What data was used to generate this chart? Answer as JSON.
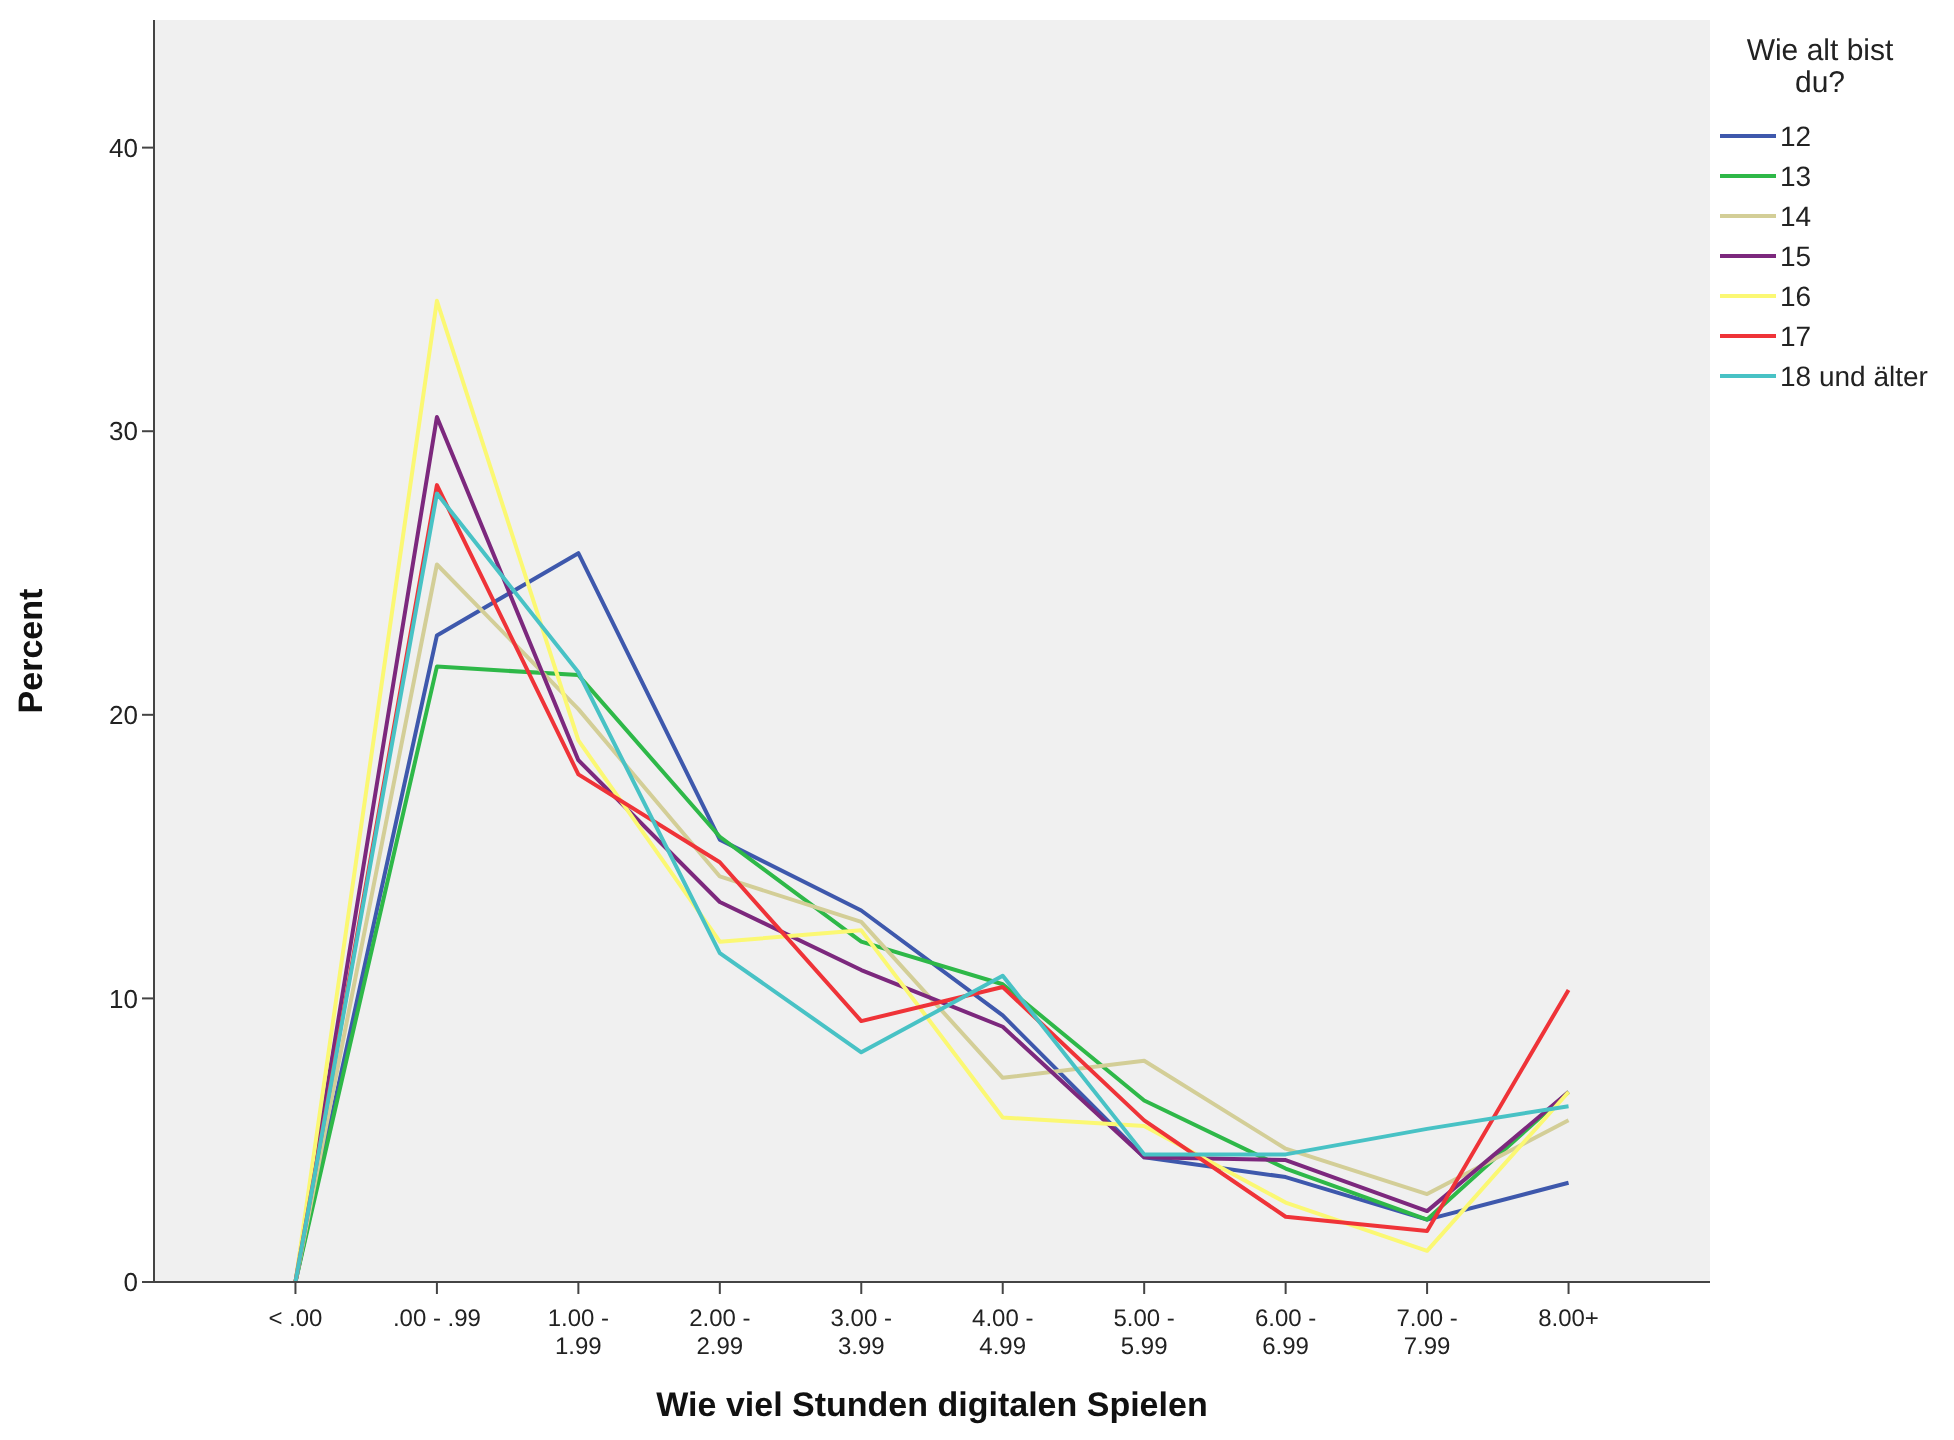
{
  "chart_data": {
    "type": "line",
    "xlabel": "Wie viel Stunden digitalen Spielen",
    "ylabel": "Percent",
    "legend_title": "Wie alt bist du?",
    "legend": "top right",
    "grid": false,
    "marker": "none",
    "line_style": "solid",
    "categories": [
      "< .00",
      ".00 - .99",
      "1.00 - 1.99",
      "2.00 - 2.99",
      "3.00 - 3.99",
      "4.00 - 4.99",
      "5.00 - 5.99",
      "6.00 - 6.99",
      "7.00 - 7.99",
      "8.00+"
    ],
    "ylim": [
      0,
      44.5
    ],
    "yticks": [
      0,
      10,
      20,
      30,
      40
    ],
    "series": [
      {
        "name": "12",
        "color": "#3e58ac",
        "values": [
          0,
          22.8,
          25.7,
          15.6,
          13.1,
          9.4,
          4.4,
          3.7,
          2.2,
          3.5
        ]
      },
      {
        "name": "13",
        "color": "#2eb848",
        "values": [
          0,
          21.7,
          21.4,
          15.7,
          12.0,
          10.5,
          6.4,
          4.0,
          2.2,
          6.7
        ]
      },
      {
        "name": "14",
        "color": "#d3ce97",
        "values": [
          0,
          25.3,
          20.2,
          14.3,
          12.7,
          7.2,
          7.8,
          4.7,
          3.1,
          5.7
        ]
      },
      {
        "name": "15",
        "color": "#7c287d",
        "values": [
          0,
          30.5,
          18.4,
          13.4,
          11.0,
          9.0,
          4.4,
          4.3,
          2.5,
          6.7
        ]
      },
      {
        "name": "16",
        "color": "#fbf873",
        "values": [
          0,
          34.6,
          19.1,
          12.0,
          12.4,
          5.8,
          5.5,
          2.8,
          1.1,
          6.7
        ]
      },
      {
        "name": "17",
        "color": "#ef3338",
        "values": [
          0,
          28.1,
          17.9,
          14.8,
          9.2,
          10.4,
          5.7,
          2.3,
          1.8,
          10.3
        ]
      },
      {
        "name": "18 und älter",
        "color": "#48c2c5",
        "values": [
          0,
          27.8,
          21.5,
          11.6,
          8.1,
          10.8,
          4.5,
          4.5,
          5.4,
          6.2
        ]
      }
    ]
  }
}
